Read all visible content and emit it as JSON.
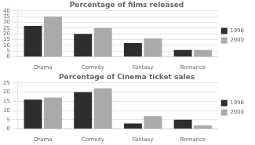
{
  "chart_data": [
    {
      "type": "bar",
      "title": "Percentage of films released",
      "categories": [
        "Drama",
        "Comedy",
        "Fantasy",
        "Romance"
      ],
      "series": [
        {
          "name": "1996",
          "color": "#2d2d2d",
          "values": [
            27,
            20,
            12,
            6
          ]
        },
        {
          "name": "2000",
          "color": "#aaaaaa",
          "values": [
            35,
            25,
            16,
            6
          ]
        }
      ],
      "ylim": [
        0,
        40
      ],
      "yticks": [
        0,
        5,
        10,
        15,
        20,
        25,
        30,
        35,
        40
      ],
      "grid": true,
      "legend": "right"
    },
    {
      "type": "bar",
      "title": "Percentage of Cinema ticket sales",
      "categories": [
        "Drama",
        "Comedy",
        "Fantasy",
        "Romance"
      ],
      "series": [
        {
          "name": "1996",
          "color": "#2d2d2d",
          "values": [
            16,
            20,
            3,
            5
          ]
        },
        {
          "name": "2000",
          "color": "#aaaaaa",
          "values": [
            17,
            22,
            7,
            2
          ]
        }
      ],
      "ylim": [
        0,
        25
      ],
      "yticks": [
        0,
        5,
        10,
        15,
        20,
        25
      ],
      "grid": true,
      "legend": "right"
    }
  ]
}
